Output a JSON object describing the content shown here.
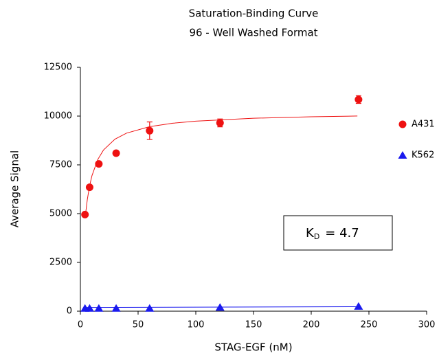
{
  "chart_data": {
    "type": "scatter",
    "title": "Saturation-Binding Curve",
    "subtitle": "96 - Well Washed Format",
    "x_label": "STAG-EGF (nM)",
    "y_label": "Average Signal",
    "xlim": [
      0,
      300
    ],
    "ylim": [
      0,
      12500
    ],
    "xticks": [
      0,
      50,
      100,
      150,
      200,
      250,
      300
    ],
    "yticks": [
      0,
      2500,
      5000,
      7500,
      10000,
      12500
    ],
    "grid": false,
    "legend": "right",
    "series": [
      {
        "name": "A431",
        "color": "#ee1111",
        "marker": "circle",
        "x": [
          4,
          8,
          16,
          31,
          60,
          121,
          241
        ],
        "values": [
          4950,
          6350,
          7550,
          8100,
          9250,
          9650,
          10850
        ],
        "errors": [
          null,
          null,
          null,
          null,
          450,
          200,
          200
        ],
        "fit_x": [
          4.5,
          6,
          8,
          10,
          15,
          20,
          30,
          40,
          60,
          80,
          100,
          150,
          200,
          240
        ],
        "fit_values": [
          4989,
          5720,
          6425,
          6939,
          7767,
          8259,
          8818,
          9127,
          9459,
          9634,
          9742,
          9890,
          9966,
          10004
        ]
      },
      {
        "name": "K562",
        "color": "#1a1aee",
        "marker": "triangle",
        "x": [
          4,
          8,
          16,
          31,
          60,
          121,
          241
        ],
        "values": [
          150,
          150,
          150,
          150,
          150,
          200,
          250
        ],
        "errors": [
          null,
          null,
          null,
          null,
          null,
          null,
          null
        ],
        "fit_x": [
          4.5,
          240
        ],
        "fit_values": [
          190,
          230
        ]
      }
    ],
    "annotation": {
      "symbol": "K",
      "subscript": "D",
      "text": "= 4.7"
    }
  }
}
